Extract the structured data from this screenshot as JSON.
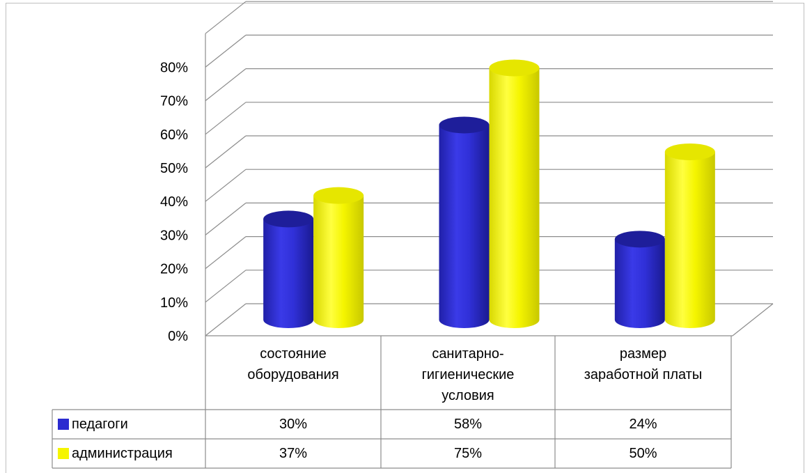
{
  "chart_data": {
    "type": "bar",
    "categories": [
      "состояние\nоборудования",
      "санитарно-\nгигиенические\nусловия",
      "размер\nзаработной платы"
    ],
    "series": [
      {
        "name": "педагоги",
        "values": [
          30,
          58,
          24
        ],
        "color": "#2b2bd0",
        "labels": [
          "30%",
          "58%",
          "24%"
        ]
      },
      {
        "name": "администрация",
        "values": [
          37,
          75,
          50
        ],
        "color": "#f5f500",
        "labels": [
          "37%",
          "75%",
          "50%"
        ]
      }
    ],
    "y_ticks": [
      "0%",
      "10%",
      "20%",
      "30%",
      "40%",
      "50%",
      "60%",
      "70%",
      "80%"
    ],
    "ylim": [
      0,
      90
    ],
    "grid": true,
    "data_table": true,
    "legend": "table"
  },
  "category_lines": [
    [
      "состояние",
      "оборудования"
    ],
    [
      "санитарно-",
      "гигиенические",
      "условия"
    ],
    [
      "размер",
      "заработной платы"
    ]
  ]
}
